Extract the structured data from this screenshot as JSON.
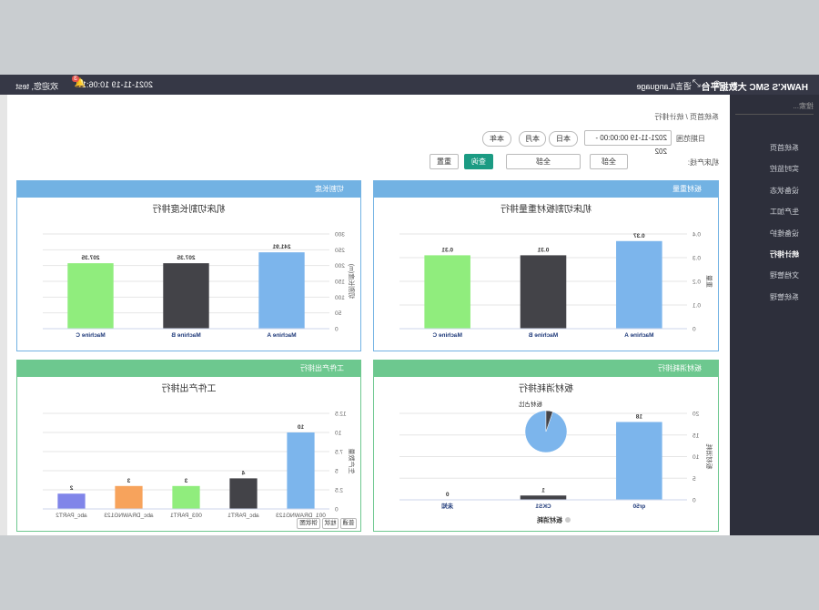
{
  "header": {
    "logo": "HAWK'S SMC 大数据平台",
    "language": "语言/Language",
    "datetime": "2021-11-19 10:06:16",
    "badge": "3",
    "user": "欢迎您, test"
  },
  "sidebar": {
    "search": "搜索...",
    "items": [
      "系统首页",
      "实时监控",
      "设备状态",
      "生产加工",
      "设备维护",
      "统计排行",
      "文档管理",
      "系统管理"
    ]
  },
  "breadcrumb": [
    "系统首页",
    "统计排行"
  ],
  "filters": {
    "date_label": "日期范围",
    "date_value": "2021-11-19 00:00:00 - 202",
    "today": "本日",
    "month": "本月",
    "year": "本年",
    "line_label": "机床产线:",
    "select1": "全部",
    "select2": "全部",
    "query": "查询",
    "reset": "重置"
  },
  "panels": [
    "板材重量",
    "切割长度",
    "板材消耗排行",
    "工件产出排行"
  ],
  "chart_buttons": [
    "普通",
    "柱状",
    "饼状图"
  ],
  "chart_data": [
    {
      "type": "bar",
      "title": "机床切割板材重量排行",
      "y_label": "重量",
      "categories": [
        "Machine A",
        "Machine B",
        "Machine C"
      ],
      "values": [
        0.37,
        0.31,
        0.31
      ],
      "colors": [
        "#7cb5ec",
        "#434348",
        "#90ed7d"
      ],
      "ylim": [
        0,
        0.4
      ],
      "yticks": [
        0,
        0.1,
        0.2,
        0.3,
        0.4
      ],
      "grid": true
    },
    {
      "type": "bar",
      "title": "机床切割长度排行",
      "y_label": "切割长度(m)",
      "categories": [
        "Machine A",
        "Machine B",
        "Machine C"
      ],
      "values": [
        241.91,
        207.35,
        207.35
      ],
      "colors": [
        "#7cb5ec",
        "#434348",
        "#90ed7d"
      ],
      "ylim": [
        0,
        300
      ],
      "yticks": [
        0,
        50,
        100,
        150,
        200,
        250,
        300
      ],
      "grid": true
    },
    {
      "type": "bar",
      "title": "板材消耗排行",
      "y_label": "板材消耗",
      "legend": "板材消耗",
      "pie_label": "板材占比",
      "categories": [
        "qr50",
        "CKS1",
        "未知"
      ],
      "values": [
        18,
        1,
        0
      ],
      "colors": [
        "#7cb5ec",
        "#434348",
        "#90ed7d"
      ],
      "ylim": [
        0,
        20
      ],
      "yticks": [
        0,
        5,
        10,
        15,
        20
      ],
      "grid": true
    },
    {
      "type": "bar",
      "title": "工件产出排行",
      "y_label": "生产数量",
      "categories": [
        "001_DRAWNG123",
        "abc_PART1",
        "003_PART1",
        "abc_DRAWNG123",
        "abc_PART2"
      ],
      "values": [
        10,
        4,
        3,
        3,
        2
      ],
      "colors": [
        "#7cb5ec",
        "#434348",
        "#90ed7d",
        "#f7a35c",
        "#8085e9"
      ],
      "ylim": [
        0,
        12.5
      ],
      "yticks": [
        0,
        2.5,
        5,
        7.5,
        10,
        12.5
      ],
      "grid": true
    }
  ]
}
